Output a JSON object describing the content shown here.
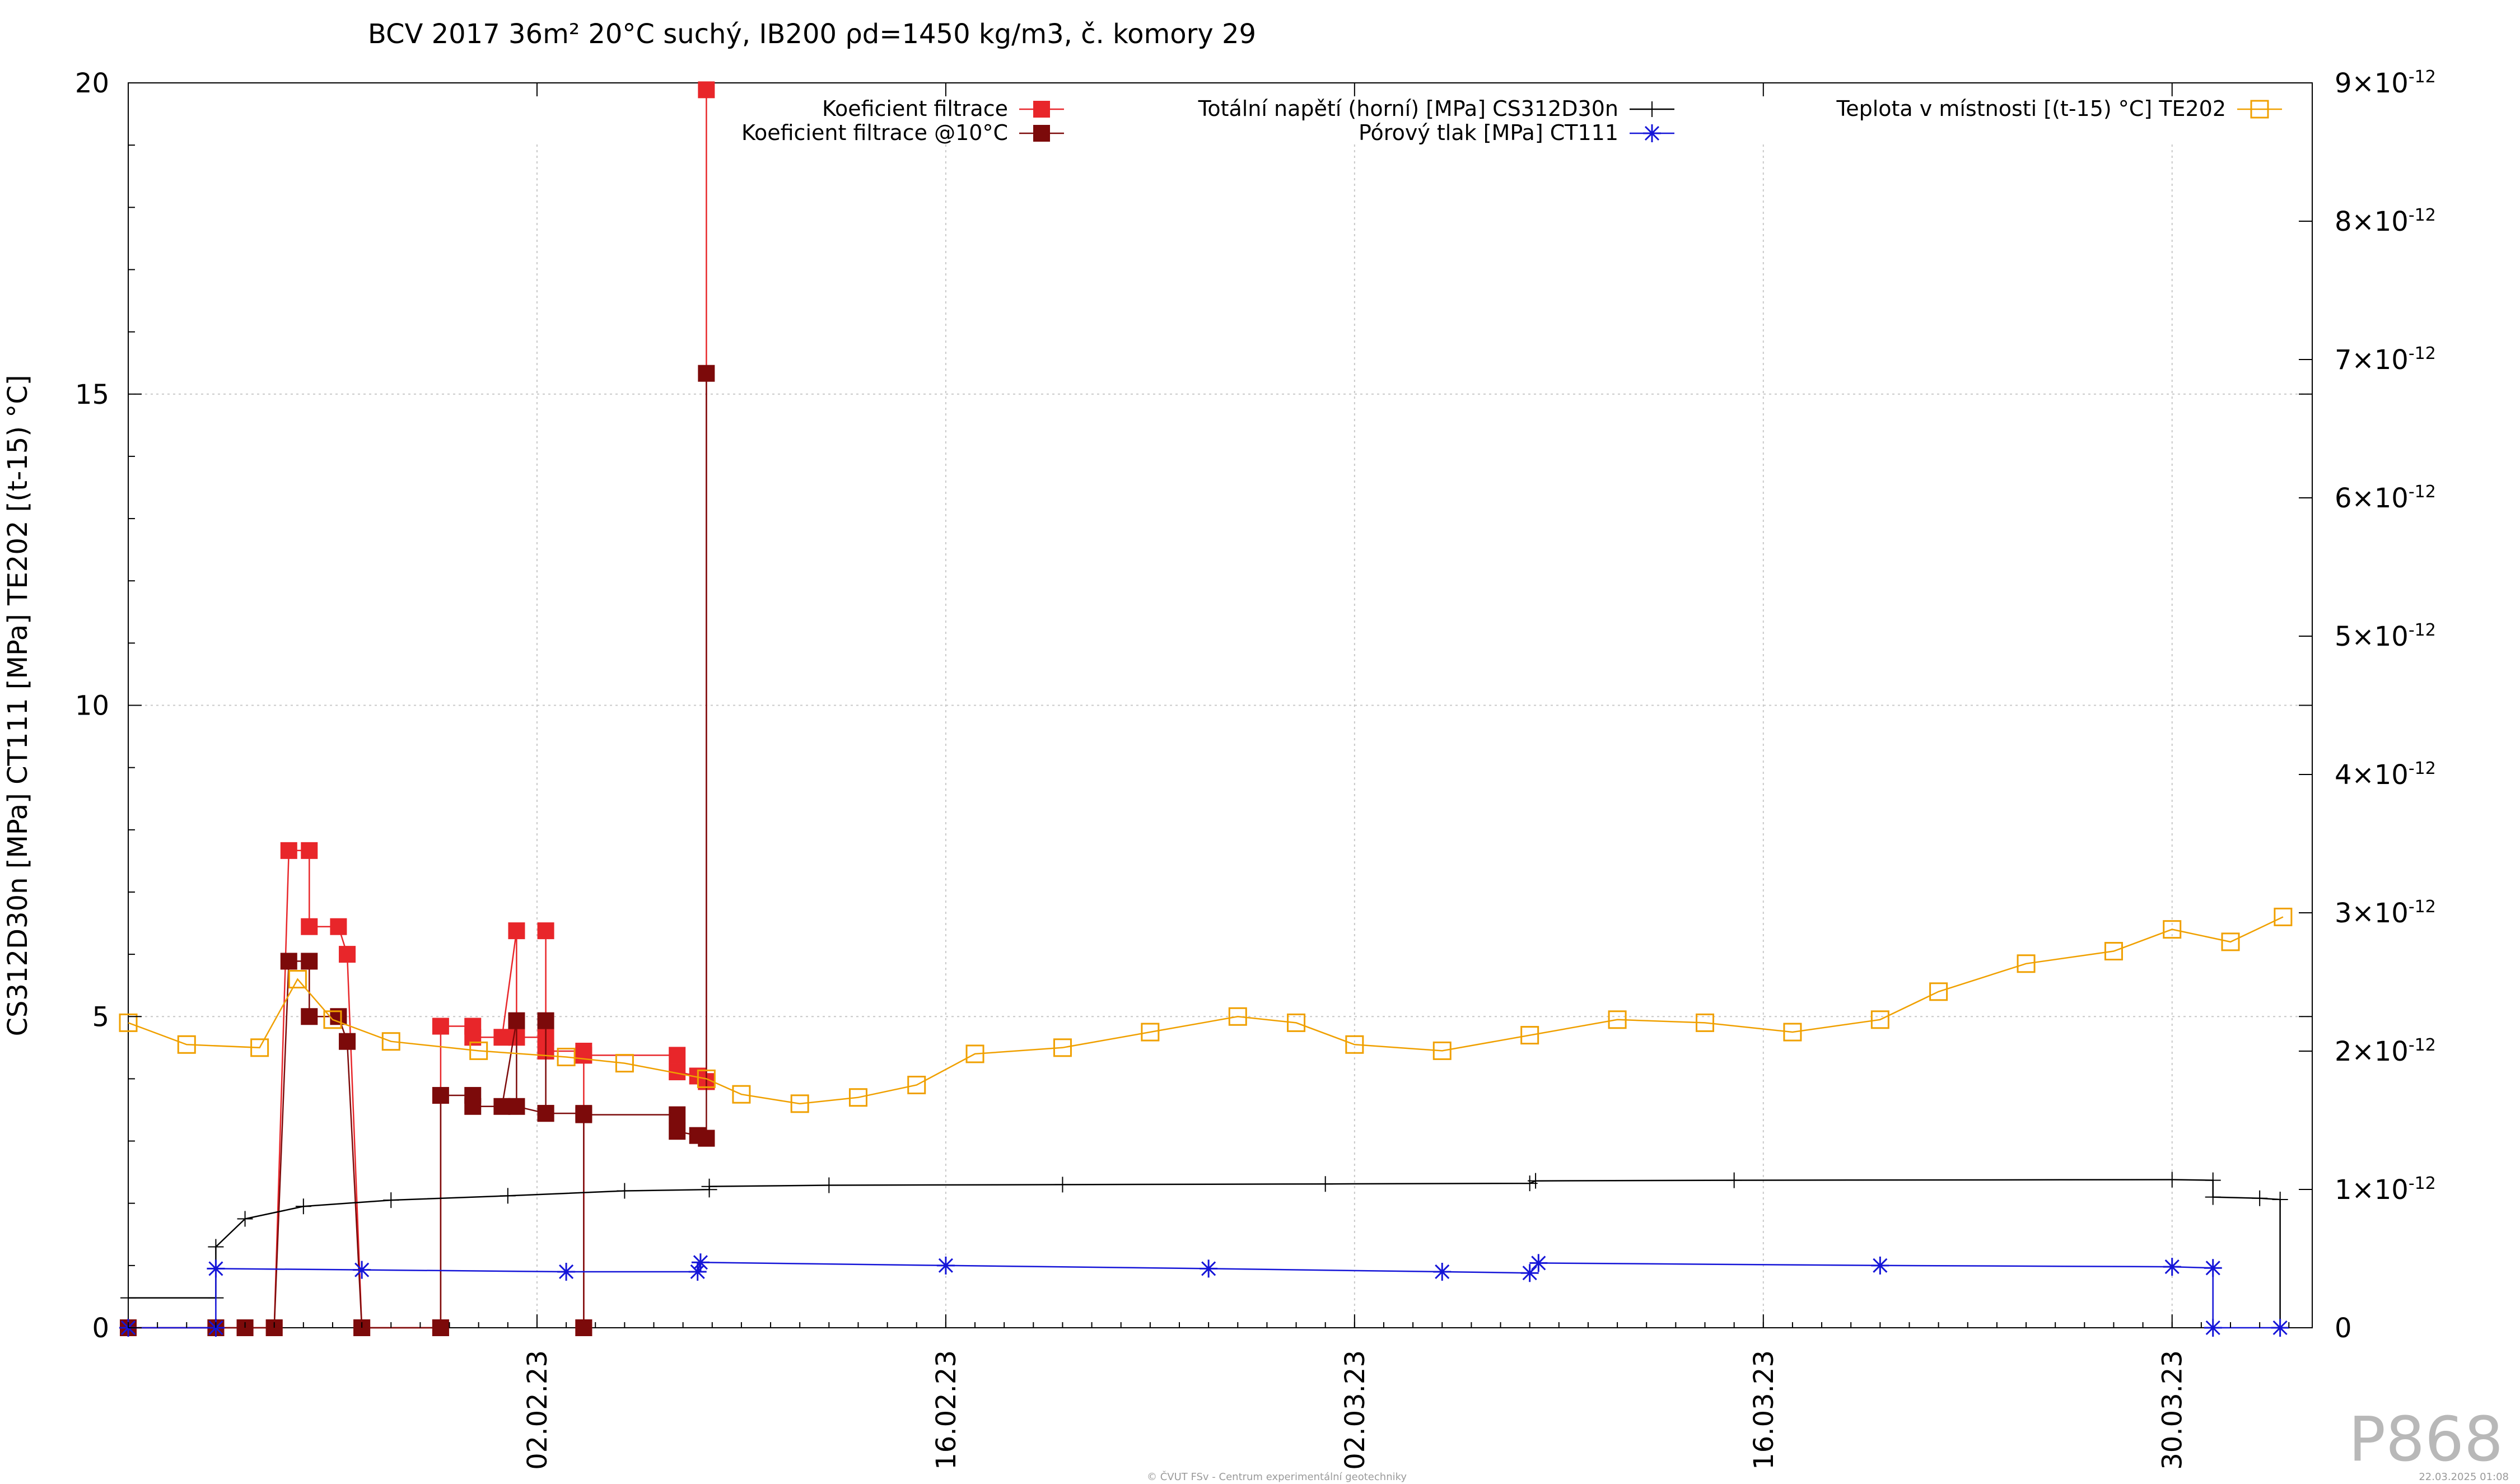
{
  "chart_data": {
    "type": "line",
    "title": "BCV 2017 36m² 20°C suchý, IB200 ρd=1450 kg/m3, č. komory 29",
    "ylabel": "CS312D30n [MPa] CT111 [MPa] TE202 [(t-15) °C]",
    "y2label": "",
    "ylim": [
      0,
      20
    ],
    "y2lim": [
      0,
      9e-12
    ],
    "grid": true,
    "legend_position": "top",
    "x_axis": {
      "type": "date",
      "range": [
        "2023-01-19",
        "2023-04-01"
      ],
      "tick_labels": [
        "02.02.23",
        "16.02.23",
        "02.03.23",
        "16.03.23",
        "30.03.23"
      ],
      "tick_dates": [
        "2023-02-02",
        "2023-02-16",
        "2023-03-02",
        "2023-03-16",
        "2023-03-30"
      ]
    },
    "y_ticks": [
      "0",
      "5",
      "10",
      "15",
      "20"
    ],
    "y2_ticks": [
      {
        "mant": "0",
        "exp": ""
      },
      {
        "mant": "1×10",
        "exp": "-12"
      },
      {
        "mant": "2×10",
        "exp": "-12"
      },
      {
        "mant": "3×10",
        "exp": "-12"
      },
      {
        "mant": "4×10",
        "exp": "-12"
      },
      {
        "mant": "5×10",
        "exp": "-12"
      },
      {
        "mant": "6×10",
        "exp": "-12"
      },
      {
        "mant": "7×10",
        "exp": "-12"
      },
      {
        "mant": "8×10",
        "exp": "-12"
      },
      {
        "mant": "9×10",
        "exp": "-12"
      }
    ],
    "colors": {
      "koef": "#e8262a",
      "koef10": "#7c0a0a",
      "tlak": "#000000",
      "porovy": "#1515d8",
      "teplota": "#f0a000",
      "grid": "#c8c8c8"
    },
    "series": [
      {
        "name": "Koeficient filtrace",
        "axis": "y2",
        "color": "#e8262a",
        "marker": "square-filled",
        "points": [
          [
            "2023-01-19",
            0
          ],
          [
            "2023-01-22",
            0
          ],
          [
            "2023-01-23",
            0
          ],
          [
            "2023-01-24",
            0
          ],
          [
            "2023-01-24.5",
            3.45e-12
          ],
          [
            "2023-01-25.2",
            3.45e-12
          ],
          [
            "2023-01-25.2",
            2.9e-12
          ],
          [
            "2023-01-26.2",
            2.9e-12
          ],
          [
            "2023-01-26.5",
            2.7e-12
          ],
          [
            "2023-01-27",
            0
          ],
          [
            "2023-01-29.7",
            0
          ],
          [
            "2023-01-29.7",
            2.18e-12
          ],
          [
            "2023-01-30.8",
            2.18e-12
          ],
          [
            "2023-01-30.8",
            2.1e-12
          ],
          [
            "2023-01-31.8",
            2.1e-12
          ],
          [
            "2023-02-01.3",
            2.87e-12
          ],
          [
            "2023-02-01.3",
            2.1e-12
          ],
          [
            "2023-02-02.3",
            2.1e-12
          ],
          [
            "2023-02-02.3",
            2.87e-12
          ],
          [
            "2023-02-02.3",
            2e-12
          ],
          [
            "2023-02-03.6",
            2e-12
          ],
          [
            "2023-02-03.6",
            0
          ],
          [
            "2023-02-03.6",
            1.97e-12
          ],
          [
            "2023-02-06.8",
            1.97e-12
          ],
          [
            "2023-02-06.8",
            1.85e-12
          ],
          [
            "2023-02-07.5",
            1.82e-12
          ],
          [
            "2023-02-07.8",
            1.78e-12
          ],
          [
            "2023-02-07.8",
            8.95e-12
          ],
          [
            "2023-02-07.8",
            1.78e-12
          ]
        ]
      },
      {
        "name": "Koeficient filtrace @10°C",
        "axis": "y2",
        "color": "#7c0a0a",
        "marker": "square-filled",
        "points": [
          [
            "2023-01-19",
            0
          ],
          [
            "2023-01-22",
            0
          ],
          [
            "2023-01-23",
            0
          ],
          [
            "2023-01-24",
            0
          ],
          [
            "2023-01-24.5",
            2.65e-12
          ],
          [
            "2023-01-25.2",
            2.65e-12
          ],
          [
            "2023-01-25.2",
            2.25e-12
          ],
          [
            "2023-01-26.2",
            2.25e-12
          ],
          [
            "2023-01-26.5",
            2.07e-12
          ],
          [
            "2023-01-27",
            0
          ],
          [
            "2023-01-29.7",
            0
          ],
          [
            "2023-01-29.7",
            1.68e-12
          ],
          [
            "2023-01-30.8",
            1.68e-12
          ],
          [
            "2023-01-30.8",
            1.6e-12
          ],
          [
            "2023-01-31.8",
            1.6e-12
          ],
          [
            "2023-02-01.3",
            2.22e-12
          ],
          [
            "2023-02-01.3",
            1.6e-12
          ],
          [
            "2023-02-02.3",
            1.55e-12
          ],
          [
            "2023-02-02.3",
            2.22e-12
          ],
          [
            "2023-02-02.3",
            1.55e-12
          ],
          [
            "2023-02-03.6",
            1.55e-12
          ],
          [
            "2023-02-03.6",
            0
          ],
          [
            "2023-02-03.6",
            1.54e-12
          ],
          [
            "2023-02-06.8",
            1.54e-12
          ],
          [
            "2023-02-06.8",
            1.42e-12
          ],
          [
            "2023-02-07.5",
            1.39e-12
          ],
          [
            "2023-02-07.8",
            1.37e-12
          ],
          [
            "2023-02-07.8",
            6.9e-12
          ],
          [
            "2023-02-07.8",
            1.37e-12
          ]
        ]
      },
      {
        "name": "Totální napětí (horní) [MPa] CS312D30n",
        "axis": "y",
        "color": "#000000",
        "marker": "plus",
        "points": [
          [
            "2023-01-19",
            0.48
          ],
          [
            "2023-01-22",
            0.48
          ],
          [
            "2023-01-22",
            1.3
          ],
          [
            "2023-01-23",
            1.75
          ],
          [
            "2023-01-25",
            1.95
          ],
          [
            "2023-01-28",
            2.05
          ],
          [
            "2023-02-01",
            2.12
          ],
          [
            "2023-02-05",
            2.2
          ],
          [
            "2023-02-07.9",
            2.22
          ],
          [
            "2023-02-07.9",
            2.27
          ],
          [
            "2023-02-12",
            2.29
          ],
          [
            "2023-02-20",
            2.3
          ],
          [
            "2023-03-01",
            2.31
          ],
          [
            "2023-03-08",
            2.32
          ],
          [
            "2023-03-08.2",
            2.36
          ],
          [
            "2023-03-15",
            2.37
          ],
          [
            "2023-03-30",
            2.38
          ],
          [
            "2023-03-31.4",
            2.37
          ],
          [
            "2023-03-31.4",
            2.1
          ],
          [
            "2023-04-02",
            2.08
          ],
          [
            "2023-04-02.7",
            2.06
          ],
          [
            "2023-04-02.7",
            0
          ]
        ]
      },
      {
        "name": "Pórový tlak [MPa] CT111",
        "axis": "y",
        "color": "#1515d8",
        "marker": "star",
        "points": [
          [
            "2023-01-19",
            0
          ],
          [
            "2023-01-22",
            0
          ],
          [
            "2023-01-22",
            0.95
          ],
          [
            "2023-01-27",
            0.93
          ],
          [
            "2023-02-03",
            0.9
          ],
          [
            "2023-02-07.5",
            0.9
          ],
          [
            "2023-02-07.6",
            1.05
          ],
          [
            "2023-02-16",
            1.0
          ],
          [
            "2023-02-25",
            0.95
          ],
          [
            "2023-03-05",
            0.9
          ],
          [
            "2023-03-08",
            0.88
          ],
          [
            "2023-03-08.3",
            1.04
          ],
          [
            "2023-03-20",
            1.0
          ],
          [
            "2023-03-30",
            0.98
          ],
          [
            "2023-03-31.4",
            0.96
          ],
          [
            "2023-03-31.4",
            0
          ],
          [
            "2023-04-02.7",
            0
          ]
        ]
      },
      {
        "name": "Teplota v místnosti [(t-15) °C] TE202",
        "axis": "y",
        "color": "#f0a000",
        "marker": "square-open",
        "points": [
          [
            "2023-01-19",
            4.9
          ],
          [
            "2023-01-21",
            4.55
          ],
          [
            "2023-01-23.5",
            4.5
          ],
          [
            "2023-01-24.8",
            5.6
          ],
          [
            "2023-01-26",
            4.95
          ],
          [
            "2023-01-28",
            4.6
          ],
          [
            "2023-01-31",
            4.45
          ],
          [
            "2023-02-03",
            4.35
          ],
          [
            "2023-02-05",
            4.25
          ],
          [
            "2023-02-07.8",
            4.0
          ],
          [
            "2023-02-09",
            3.75
          ],
          [
            "2023-02-11",
            3.6
          ],
          [
            "2023-02-13",
            3.7
          ],
          [
            "2023-02-15",
            3.9
          ],
          [
            "2023-02-17",
            4.4
          ],
          [
            "2023-02-20",
            4.5
          ],
          [
            "2023-02-23",
            4.75
          ],
          [
            "2023-02-26",
            5.0
          ],
          [
            "2023-02-28",
            4.9
          ],
          [
            "2023-03-02",
            4.55
          ],
          [
            "2023-03-05",
            4.45
          ],
          [
            "2023-03-08",
            4.7
          ],
          [
            "2023-03-11",
            4.95
          ],
          [
            "2023-03-14",
            4.9
          ],
          [
            "2023-03-17",
            4.75
          ],
          [
            "2023-03-20",
            4.95
          ],
          [
            "2023-03-22",
            5.4
          ],
          [
            "2023-03-25",
            5.85
          ],
          [
            "2023-03-28",
            6.05
          ],
          [
            "2023-03-30",
            6.4
          ],
          [
            "2023-04-01",
            6.2
          ],
          [
            "2023-04-02.8",
            6.6
          ]
        ]
      }
    ]
  },
  "watermark": "P868",
  "footer_left": "© ČVUT FSv - Centrum experimentální geotechniky",
  "footer_right": "22.03.2025 01:08"
}
